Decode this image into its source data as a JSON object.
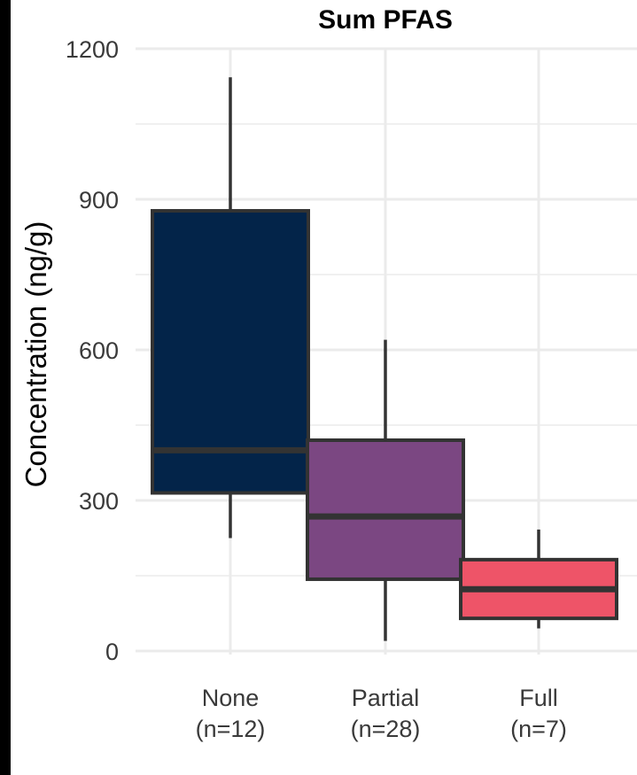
{
  "chart_data": {
    "type": "box",
    "title": "Sum PFAS",
    "ylabel": "Concentration (ng/g)",
    "xlabel": "",
    "ylim": [
      0,
      1200
    ],
    "y_ticks": [
      0,
      300,
      600,
      900,
      1200
    ],
    "grid": true,
    "categories": [
      {
        "name": "None",
        "n_label": "(n=12)",
        "whisker_low": 225,
        "q1": 315,
        "median": 400,
        "q3": 877,
        "whisker_high": 1143,
        "color": "#032449"
      },
      {
        "name": "Partial",
        "n_label": "(n=28)",
        "whisker_low": 20,
        "q1": 143,
        "median": 268,
        "q3": 420,
        "whisker_high": 620,
        "color": "#7B4782"
      },
      {
        "name": "Full",
        "n_label": "(n=7)",
        "whisker_low": 45,
        "q1": 65,
        "median": 123,
        "q3": 182,
        "whisker_high": 242,
        "color": "#EE5468"
      }
    ],
    "colors": {
      "grid": "#ebebeb",
      "box_outline": "#333333",
      "edge_bar": "#000000"
    }
  }
}
